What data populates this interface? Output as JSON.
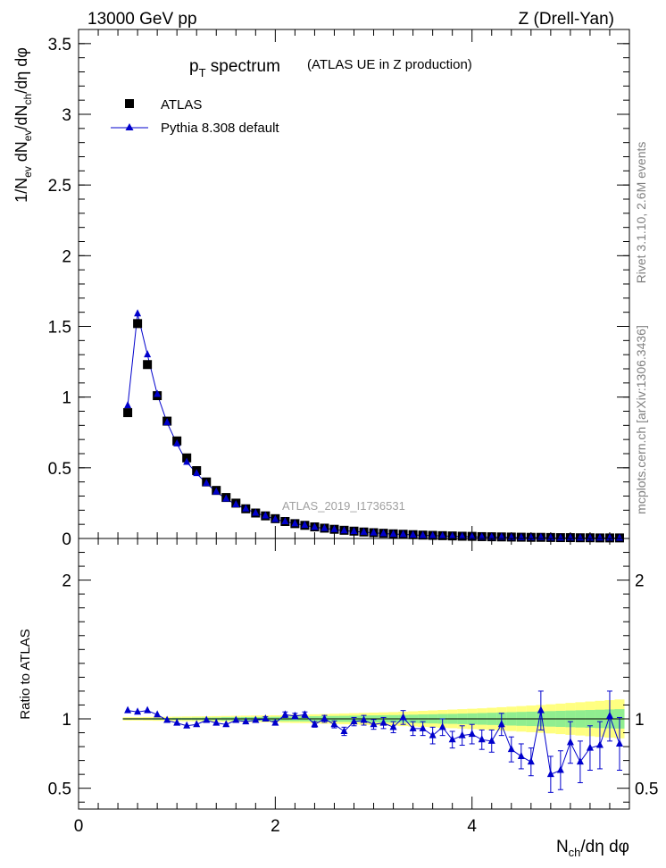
{
  "header": {
    "left": "13000 GeV pp",
    "right": "Z (Drell-Yan)"
  },
  "side_labels": {
    "rivet": "Rivet 3.1.10,  2.6M events",
    "mcplots": "mcplots.cern.ch [arXiv:1306.3436]"
  },
  "chart_data": [
    {
      "type": "scatter",
      "title_main": "p",
      "title_sub": "T",
      "title_main2": " spectrum",
      "title_small": "(ATLAS UE in Z production)",
      "ylabel": "1/N_ev dN_ev/dN_ch/dη dφ",
      "watermark": "ATLAS_2019_I1736531",
      "xlim": [
        0,
        5.6
      ],
      "ylim": [
        0,
        3.6
      ],
      "yticks": [
        0,
        0.5,
        1,
        1.5,
        2,
        2.5,
        3,
        3.5
      ],
      "ytick_labels": [
        "0",
        "0.5",
        "1",
        "1.5",
        "2",
        "2.5",
        "3",
        "3.5"
      ],
      "legend": [
        {
          "name": "ATLAS",
          "color": "#000000",
          "marker": "square"
        },
        {
          "name": "Pythia 8.308 default",
          "color": "#0000cc",
          "marker": "triangle"
        }
      ],
      "x": [
        0.5,
        0.6,
        0.7,
        0.8,
        0.9,
        1.0,
        1.1,
        1.2,
        1.3,
        1.4,
        1.5,
        1.6,
        1.7,
        1.8,
        1.9,
        2.0,
        2.1,
        2.2,
        2.3,
        2.4,
        2.5,
        2.6,
        2.7,
        2.8,
        2.9,
        3.0,
        3.1,
        3.2,
        3.3,
        3.4,
        3.5,
        3.6,
        3.7,
        3.8,
        3.9,
        4.0,
        4.1,
        4.2,
        4.3,
        4.4,
        4.5,
        4.6,
        4.7,
        4.8,
        4.9,
        5.0,
        5.1,
        5.2,
        5.3,
        5.4,
        5.5
      ],
      "series": [
        {
          "name": "ATLAS",
          "values": [
            0.89,
            1.52,
            1.23,
            1.01,
            0.83,
            0.69,
            0.57,
            0.48,
            0.4,
            0.34,
            0.29,
            0.25,
            0.21,
            0.18,
            0.16,
            0.14,
            0.12,
            0.105,
            0.093,
            0.082,
            0.073,
            0.065,
            0.058,
            0.052,
            0.046,
            0.041,
            0.037,
            0.033,
            0.03,
            0.027,
            0.024,
            0.022,
            0.02,
            0.018,
            0.016,
            0.015,
            0.013,
            0.012,
            0.011,
            0.01,
            0.009,
            0.008,
            0.008,
            0.007,
            0.006,
            0.006,
            0.005,
            0.005,
            0.004,
            0.004,
            0.004
          ]
        },
        {
          "name": "Pythia 8.308 default",
          "values": [
            0.94,
            1.59,
            1.3,
            1.02,
            0.82,
            0.67,
            0.54,
            0.46,
            0.39,
            0.33,
            0.28,
            0.24,
            0.21,
            0.18,
            0.16,
            0.135,
            0.12,
            0.105,
            0.094,
            0.08,
            0.072,
            0.064,
            0.055,
            0.05,
            0.045,
            0.04,
            0.035,
            0.031,
            0.029,
            0.025,
            0.022,
            0.02,
            0.018,
            0.016,
            0.014,
            0.013,
            0.011,
            0.01,
            0.01,
            0.008,
            0.007,
            0.006,
            0.008,
            0.005,
            0.004,
            0.005,
            0.004,
            0.003,
            0.004,
            0.004,
            0.003
          ]
        }
      ]
    },
    {
      "type": "scatter",
      "ylabel": "Ratio to ATLAS",
      "xlabel": "N_ch/dη dφ",
      "xlim": [
        0,
        5.6
      ],
      "ylim": [
        0.35,
        2.3
      ],
      "xticks": [
        0,
        2,
        4
      ],
      "xtick_labels": [
        "0",
        "2",
        "4"
      ],
      "yticks": [
        0.5,
        1,
        2
      ],
      "ytick_labels": [
        "0.5",
        "1",
        "2"
      ],
      "band_colors": {
        "inner": "#90ee90",
        "outer": "#ffff80"
      },
      "x": [
        0.5,
        0.6,
        0.7,
        0.8,
        0.9,
        1.0,
        1.1,
        1.2,
        1.3,
        1.4,
        1.5,
        1.6,
        1.7,
        1.8,
        1.9,
        2.0,
        2.1,
        2.2,
        2.3,
        2.4,
        2.5,
        2.6,
        2.7,
        2.8,
        2.9,
        3.0,
        3.1,
        3.2,
        3.3,
        3.4,
        3.5,
        3.6,
        3.7,
        3.8,
        3.9,
        4.0,
        4.1,
        4.2,
        4.3,
        4.4,
        4.5,
        4.6,
        4.7,
        4.8,
        4.9,
        5.0,
        5.1,
        5.2,
        5.3,
        5.4,
        5.5
      ],
      "band_inner": [
        0.005,
        0.005,
        0.005,
        0.006,
        0.006,
        0.008,
        0.008,
        0.009,
        0.01,
        0.01,
        0.012,
        0.012,
        0.013,
        0.013,
        0.014,
        0.015,
        0.016,
        0.017,
        0.018,
        0.019,
        0.02,
        0.021,
        0.022,
        0.023,
        0.024,
        0.025,
        0.026,
        0.027,
        0.028,
        0.03,
        0.032,
        0.033,
        0.035,
        0.036,
        0.038,
        0.04,
        0.042,
        0.044,
        0.046,
        0.048,
        0.05,
        0.052,
        0.054,
        0.056,
        0.058,
        0.06,
        0.062,
        0.064,
        0.066,
        0.068,
        0.07
      ],
      "band_outer": [
        0.012,
        0.012,
        0.013,
        0.014,
        0.015,
        0.016,
        0.017,
        0.018,
        0.019,
        0.02,
        0.021,
        0.022,
        0.023,
        0.024,
        0.025,
        0.026,
        0.028,
        0.03,
        0.031,
        0.033,
        0.035,
        0.037,
        0.039,
        0.041,
        0.043,
        0.045,
        0.047,
        0.049,
        0.052,
        0.055,
        0.058,
        0.061,
        0.064,
        0.067,
        0.07,
        0.073,
        0.076,
        0.08,
        0.084,
        0.088,
        0.092,
        0.096,
        0.1,
        0.105,
        0.11,
        0.115,
        0.12,
        0.125,
        0.13,
        0.135,
        0.14
      ],
      "series": [
        {
          "name": "Pythia 8.308 default",
          "values": [
            1.06,
            1.05,
            1.06,
            1.03,
            0.99,
            0.97,
            0.95,
            0.96,
            0.99,
            0.97,
            0.96,
            0.99,
            0.98,
            0.99,
            1.0,
            0.97,
            1.03,
            1.02,
            1.03,
            0.96,
            1.0,
            0.96,
            0.91,
            0.98,
            0.99,
            0.96,
            0.97,
            0.94,
            1.01,
            0.93,
            0.93,
            0.88,
            0.94,
            0.85,
            0.88,
            0.89,
            0.85,
            0.84,
            0.96,
            0.78,
            0.73,
            0.69,
            1.06,
            0.6,
            0.63,
            0.83,
            0.69,
            0.79,
            0.81,
            1.02,
            0.82
          ],
          "errors": [
            0.01,
            0.01,
            0.01,
            0.01,
            0.01,
            0.01,
            0.01,
            0.01,
            0.01,
            0.01,
            0.01,
            0.01,
            0.01,
            0.01,
            0.015,
            0.015,
            0.02,
            0.02,
            0.02,
            0.02,
            0.025,
            0.025,
            0.03,
            0.03,
            0.035,
            0.035,
            0.04,
            0.04,
            0.05,
            0.05,
            0.05,
            0.06,
            0.06,
            0.06,
            0.07,
            0.07,
            0.07,
            0.08,
            0.08,
            0.09,
            0.09,
            0.1,
            0.14,
            0.13,
            0.14,
            0.15,
            0.15,
            0.16,
            0.17,
            0.18,
            0.19
          ]
        }
      ]
    }
  ]
}
